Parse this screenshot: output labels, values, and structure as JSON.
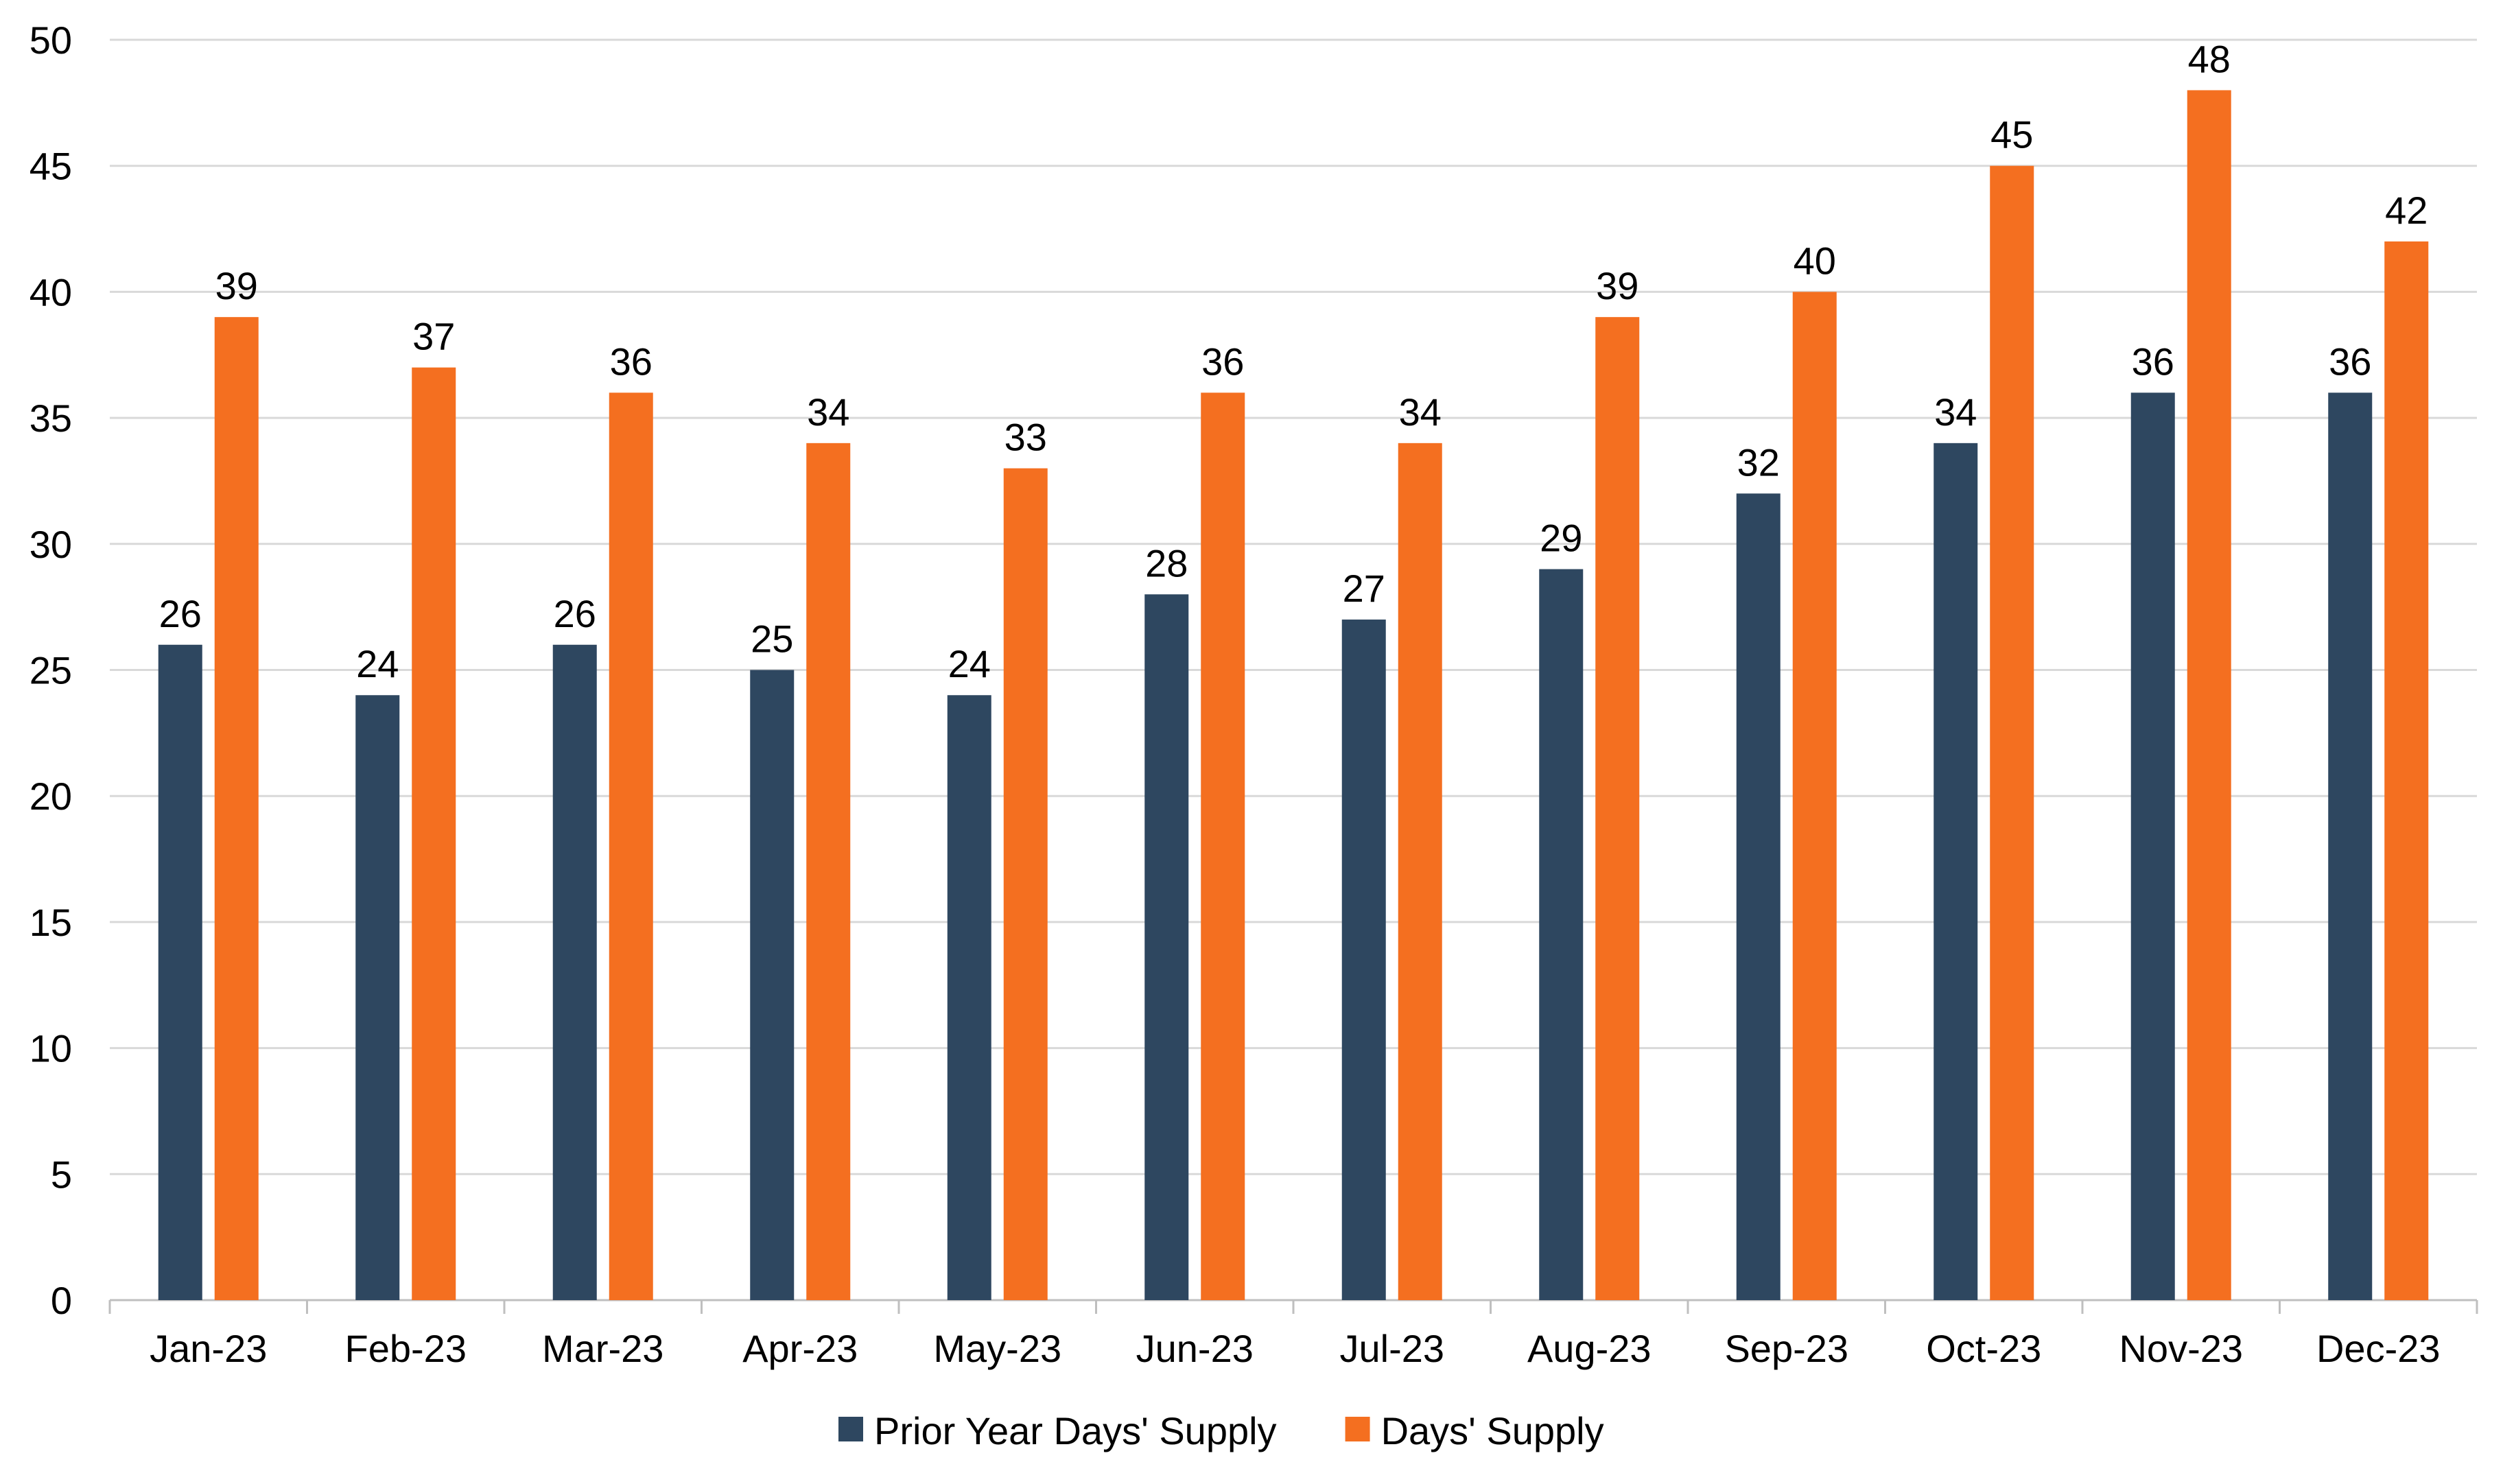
{
  "chart_data": {
    "type": "bar",
    "title": "",
    "xlabel": "",
    "ylabel": "",
    "categories": [
      "Jan-23",
      "Feb-23",
      "Mar-23",
      "Apr-23",
      "May-23",
      "Jun-23",
      "Jul-23",
      "Aug-23",
      "Sep-23",
      "Oct-23",
      "Nov-23",
      "Dec-23"
    ],
    "series": [
      {
        "name": "Prior Year Days' Supply",
        "color": "#2E4760",
        "values": [
          26,
          24,
          26,
          25,
          24,
          28,
          27,
          29,
          32,
          34,
          36,
          36
        ]
      },
      {
        "name": "Days' Supply",
        "color": "#F46F20",
        "values": [
          39,
          37,
          36,
          34,
          33,
          36,
          34,
          39,
          40,
          45,
          48,
          42
        ]
      }
    ],
    "ylim": [
      0,
      50
    ],
    "yticks": [
      0,
      5,
      10,
      15,
      20,
      25,
      30,
      35,
      40,
      45,
      50
    ],
    "grid": true,
    "legend": "bottom",
    "data_labels": true
  }
}
